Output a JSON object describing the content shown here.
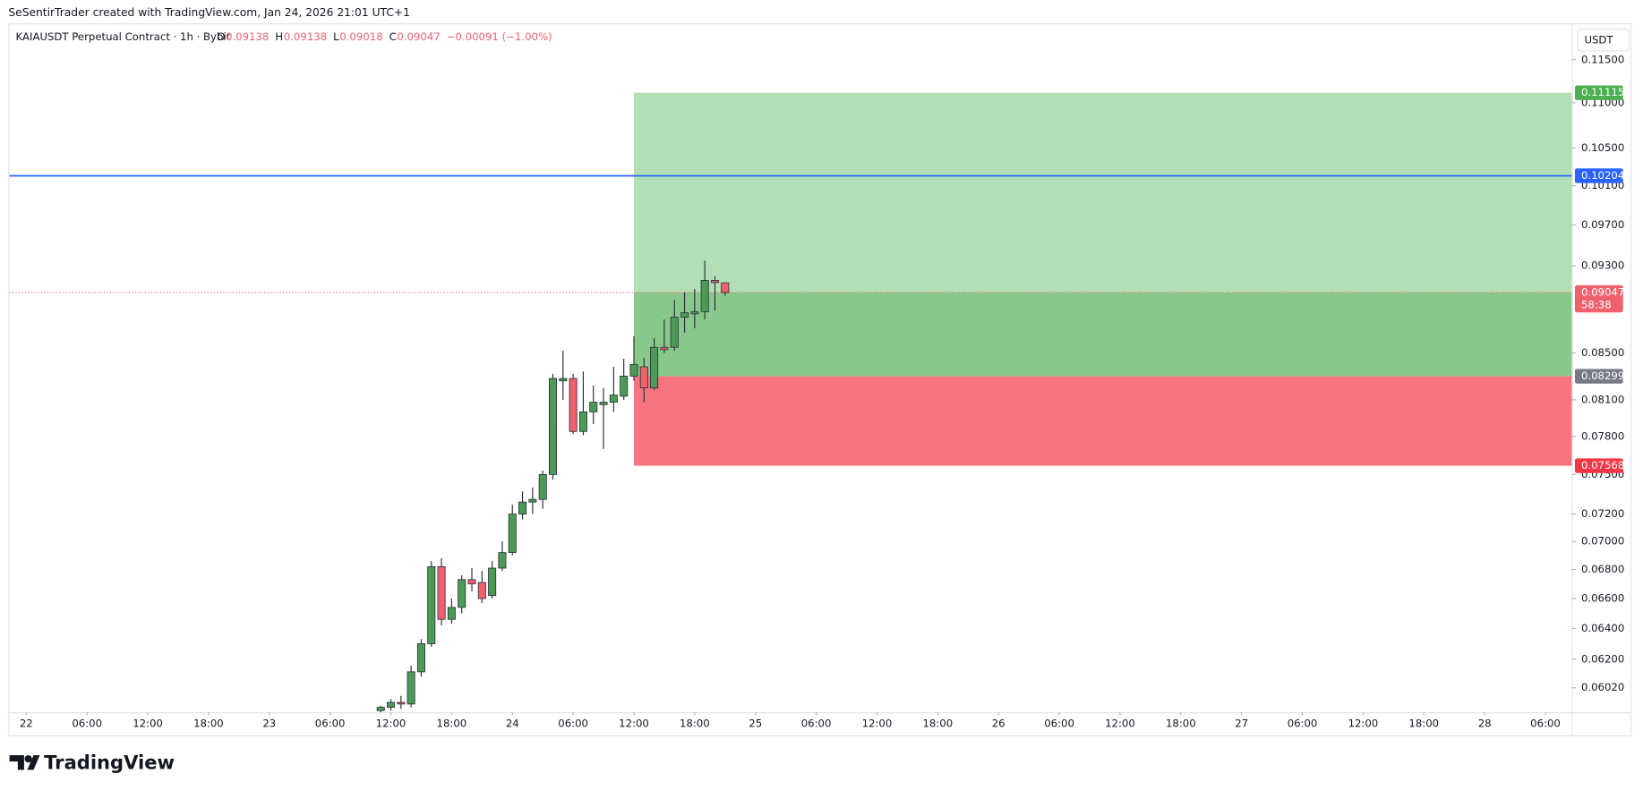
{
  "header": "SeSentirTrader created with TradingView.com, Jan 24, 2026 21:01 UTC+1",
  "legend": {
    "symbol": "KAIAUSDT Perpetual Contract · 1h · Bybit",
    "ohlc": [
      {
        "label": "O",
        "value": 0.09138
      },
      {
        "label": "H",
        "value": 0.09138
      },
      {
        "label": "L",
        "value": 0.09018
      },
      {
        "label": "C",
        "value": 0.09047
      }
    ],
    "change": "−0.00091 (−1.00%)"
  },
  "currency": "USDT",
  "logo": "TradingView",
  "chart_data": {
    "type": "candlestick",
    "log_scale": true,
    "grid": false,
    "up_color": "#4c9a55",
    "down_color": "#f0616e",
    "border_color": "#2a2e39",
    "xlim": [
      -1.66,
      152.6
    ],
    "ylim": [
      0.0587,
      0.1194
    ],
    "xticks": [
      {
        "value": 0,
        "label": "22"
      },
      {
        "value": 6,
        "label": "06:00"
      },
      {
        "value": 12,
        "label": "12:00"
      },
      {
        "value": 18,
        "label": "18:00"
      },
      {
        "value": 24,
        "label": "23"
      },
      {
        "value": 30,
        "label": "06:00"
      },
      {
        "value": 36,
        "label": "12:00"
      },
      {
        "value": 42,
        "label": "18:00"
      },
      {
        "value": 48,
        "label": "24"
      },
      {
        "value": 54,
        "label": "06:00"
      },
      {
        "value": 60,
        "label": "12:00"
      },
      {
        "value": 66,
        "label": "18:00"
      },
      {
        "value": 72,
        "label": "25"
      },
      {
        "value": 78,
        "label": "06:00"
      },
      {
        "value": 84,
        "label": "12:00"
      },
      {
        "value": 90,
        "label": "18:00"
      },
      {
        "value": 96,
        "label": "26"
      },
      {
        "value": 102,
        "label": "06:00"
      },
      {
        "value": 108,
        "label": "12:00"
      },
      {
        "value": 114,
        "label": "18:00"
      },
      {
        "value": 120,
        "label": "27"
      },
      {
        "value": 126,
        "label": "06:00"
      },
      {
        "value": 132,
        "label": "12:00"
      },
      {
        "value": 138,
        "label": "18:00"
      },
      {
        "value": 144,
        "label": "28"
      },
      {
        "value": 150,
        "label": "06:00"
      }
    ],
    "yticks": [
      {
        "value": 0.115,
        "label": "0.11500"
      },
      {
        "value": 0.11,
        "label": "0.11000"
      },
      {
        "value": 0.105,
        "label": "0.10500"
      },
      {
        "value": 0.101,
        "label": "0.10100"
      },
      {
        "value": 0.097,
        "label": "0.09700"
      },
      {
        "value": 0.093,
        "label": "0.09300"
      },
      {
        "value": 0.085,
        "label": "0.08500"
      },
      {
        "value": 0.081,
        "label": "0.08100"
      },
      {
        "value": 0.078,
        "label": "0.07800"
      },
      {
        "value": 0.075,
        "label": "0.07500"
      },
      {
        "value": 0.072,
        "label": "0.07200"
      },
      {
        "value": 0.07,
        "label": "0.07000"
      },
      {
        "value": 0.068,
        "label": "0.06800"
      },
      {
        "value": 0.066,
        "label": "0.06600"
      },
      {
        "value": 0.064,
        "label": "0.06400"
      },
      {
        "value": 0.062,
        "label": "0.06200"
      },
      {
        "value": 0.0602,
        "label": "0.06020"
      }
    ],
    "x": [
      35,
      36,
      37,
      38,
      39,
      40,
      41,
      42,
      43,
      44,
      45,
      46,
      47,
      48,
      49,
      50,
      51,
      52,
      53,
      54,
      55,
      56,
      57,
      58,
      59,
      60,
      61,
      62,
      63,
      64,
      65,
      66,
      67,
      68,
      69
    ],
    "open": [
      0.0588,
      0.059,
      0.0593,
      0.0592,
      0.0612,
      0.063,
      0.0682,
      0.0646,
      0.0654,
      0.0673,
      0.0671,
      0.0662,
      0.0681,
      0.0692,
      0.072,
      0.0729,
      0.0731,
      0.075,
      0.0826,
      0.0828,
      0.0784,
      0.08,
      0.0806,
      0.0808,
      0.0813,
      0.083,
      0.0838,
      0.082,
      0.0855,
      0.0855,
      0.0882,
      0.0885,
      0.0887,
      0.0916,
      0.09138
    ],
    "high": [
      0.0591,
      0.0595,
      0.0597,
      0.0616,
      0.0633,
      0.0686,
      0.0688,
      0.066,
      0.0676,
      0.0681,
      0.0679,
      0.0686,
      0.07,
      0.0727,
      0.0737,
      0.074,
      0.0753,
      0.0832,
      0.0852,
      0.0832,
      0.0834,
      0.0822,
      0.082,
      0.0838,
      0.0845,
      0.0865,
      0.0846,
      0.0863,
      0.088,
      0.0898,
      0.0905,
      0.0908,
      0.0935,
      0.092,
      0.09138
    ],
    "low": [
      0.0587,
      0.0588,
      0.0589,
      0.059,
      0.0609,
      0.0628,
      0.0642,
      0.0643,
      0.065,
      0.0665,
      0.0657,
      0.066,
      0.0679,
      0.069,
      0.0716,
      0.072,
      0.0724,
      0.0746,
      0.081,
      0.0782,
      0.0781,
      0.079,
      0.077,
      0.08,
      0.081,
      0.0826,
      0.0808,
      0.0818,
      0.085,
      0.0852,
      0.0868,
      0.0872,
      0.088,
      0.0888,
      0.09018
    ],
    "close": [
      0.059,
      0.0593,
      0.0592,
      0.0612,
      0.063,
      0.0682,
      0.0646,
      0.0654,
      0.0673,
      0.067,
      0.066,
      0.0681,
      0.0692,
      0.072,
      0.0729,
      0.0731,
      0.075,
      0.0828,
      0.0828,
      0.0784,
      0.08,
      0.0808,
      0.0808,
      0.0814,
      0.083,
      0.084,
      0.082,
      0.0855,
      0.0853,
      0.0882,
      0.0886,
      0.0887,
      0.0916,
      0.0914,
      0.09047
    ],
    "position": {
      "start": 60,
      "target": 0.11115,
      "entry": 0.08299,
      "stop": 0.07568,
      "target_color": "#4caf50",
      "entry_color": "#787b86",
      "stop_color": "#f23645",
      "profit_fill": "#b3dfb6",
      "profit_filled": "#88c98b",
      "loss_fill": "#f5747f"
    },
    "hline": {
      "value": 0.10204,
      "color": "#2962ff"
    },
    "last_price": {
      "value": 0.09047,
      "countdown": "58:38",
      "color": "#f0616e"
    }
  }
}
